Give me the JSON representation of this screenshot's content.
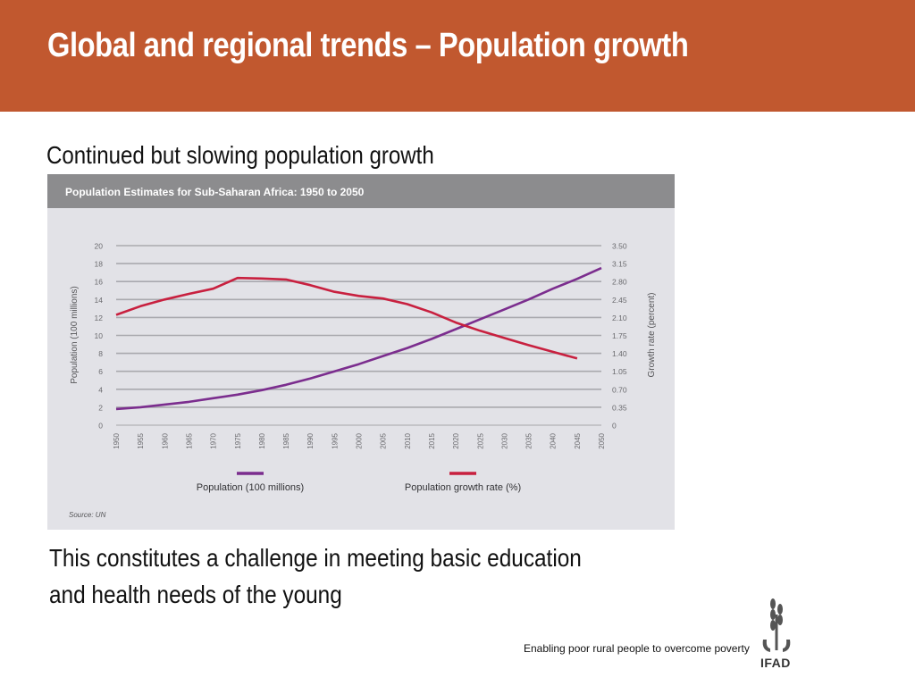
{
  "slide": {
    "title": "Global and regional trends – Population growth",
    "subtitle": "Continued but slowing population growth",
    "body_text": "This constitutes a challenge in meeting basic education and health needs of the young"
  },
  "footer": {
    "tagline": "Enabling poor rural people to overcome poverty",
    "logo_text": "IFAD"
  },
  "colors": {
    "header_bg": "#c1582f",
    "population_series": "#7b2d8e",
    "growth_series": "#c8203f"
  },
  "chart_data": {
    "type": "line",
    "title": "Population Estimates for Sub-Saharan Africa: 1950 to 2050",
    "source": "Source: UN",
    "legend_position": "bottom",
    "grid": true,
    "x": [
      "1950",
      "1955",
      "1960",
      "1965",
      "1970",
      "1975",
      "1980",
      "1985",
      "1990",
      "1995",
      "2000",
      "2005",
      "2010",
      "2015",
      "2020",
      "2025",
      "2030",
      "2035",
      "2040",
      "2045",
      "2050"
    ],
    "y_left": {
      "label": "Population (100 millions)",
      "range": [
        0,
        20
      ],
      "ticks": [
        "0",
        "2",
        "4",
        "6",
        "8",
        "10",
        "12",
        "14",
        "16",
        "18",
        "20"
      ]
    },
    "y_right": {
      "label": "Growth rate (percent)",
      "range": [
        0,
        3.5
      ],
      "ticks": [
        "0",
        "0.35",
        "0.70",
        "1.05",
        "1.40",
        "1.75",
        "2.10",
        "2.45",
        "2.80",
        "3.15",
        "3.50"
      ]
    },
    "series": [
      {
        "name": "Population (100 millions)",
        "axis": "left",
        "values": [
          1.8,
          2.0,
          2.3,
          2.6,
          3.0,
          3.4,
          3.9,
          4.5,
          5.2,
          6.0,
          6.8,
          7.7,
          8.6,
          9.6,
          10.7,
          11.8,
          12.9,
          14.0,
          15.2,
          16.3,
          17.5
        ]
      },
      {
        "name": "Population growth rate (%)",
        "axis": "right",
        "values": [
          2.15,
          2.32,
          2.45,
          2.56,
          2.66,
          2.87,
          2.86,
          2.84,
          2.73,
          2.6,
          2.52,
          2.47,
          2.36,
          2.2,
          2.0,
          1.84,
          1.7,
          1.56,
          1.43,
          1.3,
          null
        ]
      }
    ]
  }
}
